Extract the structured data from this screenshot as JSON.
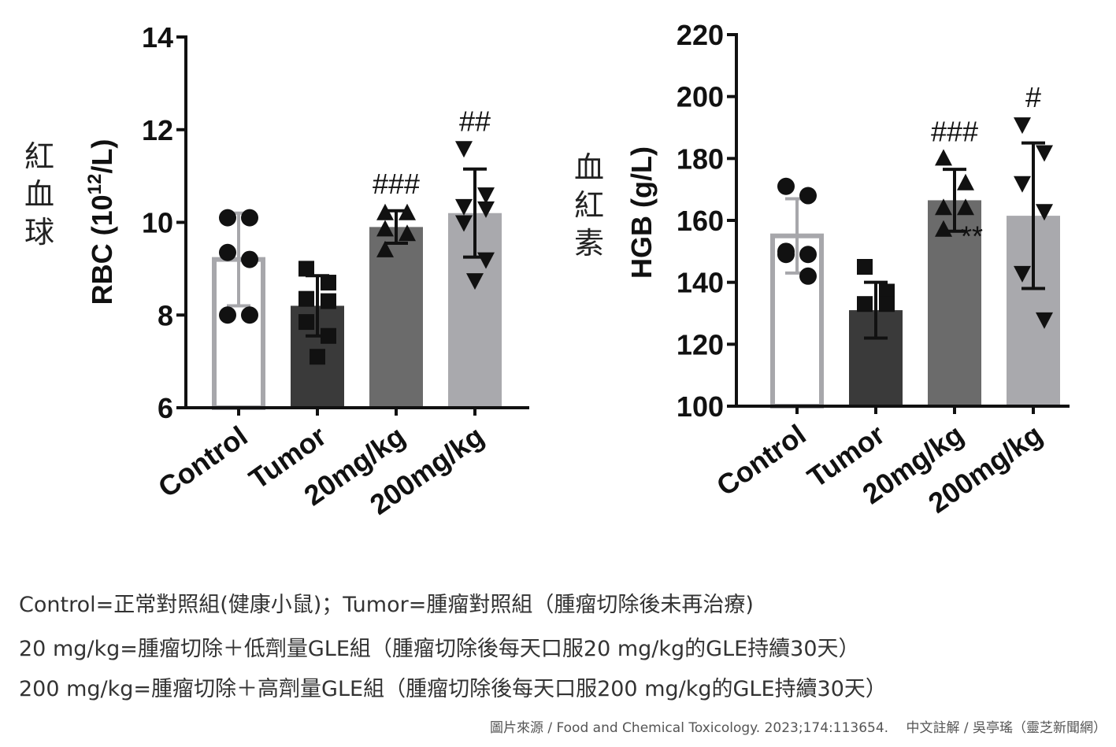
{
  "chart_data": [
    {
      "type": "bar",
      "title": "",
      "side_label": "紅血球",
      "ylabel_main": "RBC (10",
      "ylabel_sup": "12",
      "ylabel_tail": "/L)",
      "ylim": [
        6,
        14
      ],
      "yticks": [
        6,
        8,
        10,
        12,
        14
      ],
      "categories": [
        "Control",
        "Tumor",
        "20mg/kg",
        "200mg/kg"
      ],
      "bar_colors": [
        "#ffffff",
        "#3a3a3a",
        "#6b6b6b",
        "#a9a9ad"
      ],
      "bar_edges": [
        "#a7a7ab",
        "#3a3a3a",
        "#6b6b6b",
        "#a9a9ad"
      ],
      "markers": [
        "circle",
        "square",
        "triangle-up",
        "triangle-down"
      ],
      "means": [
        9.2,
        8.2,
        9.9,
        10.2
      ],
      "sd": [
        1.0,
        0.65,
        0.35,
        0.95
      ],
      "points": [
        [
          10.1,
          10.1,
          9.35,
          9.2,
          8.0,
          8.0
        ],
        [
          9.0,
          8.7,
          8.35,
          8.3,
          7.85,
          7.55,
          7.1
        ],
        [
          10.2,
          10.2,
          9.85,
          9.75,
          9.4
        ],
        [
          11.6,
          10.6,
          10.35,
          10.3,
          10.0,
          9.2,
          8.75
        ]
      ],
      "annotations": [
        "",
        "",
        "###",
        "##"
      ]
    },
    {
      "type": "bar",
      "title": "",
      "side_label": "血紅素",
      "ylabel_main": "HGB (g/L)",
      "ylabel_sup": "",
      "ylabel_tail": "",
      "ylim": [
        100,
        220
      ],
      "yticks": [
        100,
        120,
        140,
        160,
        180,
        200,
        220
      ],
      "categories": [
        "Control",
        "Tumor",
        "20mg/kg",
        "200mg/kg"
      ],
      "bar_colors": [
        "#ffffff",
        "#3a3a3a",
        "#6b6b6b",
        "#a9a9ad"
      ],
      "bar_edges": [
        "#a7a7ab",
        "#3a3a3a",
        "#6b6b6b",
        "#a9a9ad"
      ],
      "markers": [
        "circle",
        "square",
        "triangle-up",
        "triangle-down"
      ],
      "means": [
        155,
        131,
        166.5,
        161.5
      ],
      "sd": [
        12,
        9,
        10,
        23.5
      ],
      "points": [
        [
          171,
          168,
          150,
          149,
          149,
          142
        ],
        [
          145,
          137,
          133,
          133
        ],
        [
          180,
          172,
          164,
          164,
          157
        ],
        [
          191,
          182,
          172,
          163,
          143,
          128
        ]
      ],
      "annotations": [
        "",
        "",
        "###",
        "#"
      ],
      "bar_notes": [
        "",
        "",
        "**",
        ""
      ]
    }
  ],
  "caption": {
    "line1": "Control=正常對照組(健康小鼠)；Tumor=腫瘤對照組（腫瘤切除後未再治療)",
    "line2": "20 mg/kg=腫瘤切除＋低劑量GLE組（腫瘤切除後每天口服20 mg/kg的GLE持續30天）",
    "line3": "200 mg/kg=腫瘤切除＋高劑量GLE組（腫瘤切除後每天口服200 mg/kg的GLE持續30天）"
  },
  "source": "圖片來源 / Food and Chemical Toxicology. 2023;174:113654.　 中文註解 / 吳亭瑤（靈芝新聞網）"
}
